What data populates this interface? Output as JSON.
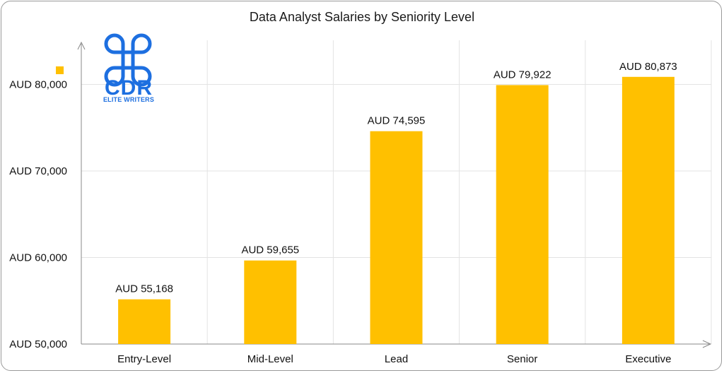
{
  "chart_data": {
    "type": "bar",
    "title": "Data Analyst Salaries by Seniority Level",
    "xlabel": "",
    "ylabel": "",
    "categories": [
      "Entry-Level",
      "Mid-Level",
      "Lead",
      "Senior",
      "Executive"
    ],
    "values": [
      55168,
      59655,
      74595,
      79922,
      80873
    ],
    "data_labels": [
      "AUD 55,168",
      "AUD 59,655",
      "AUD 74,595",
      "AUD 79,922",
      "AUD 80,873"
    ],
    "yticks": [
      50000,
      60000,
      70000,
      80000
    ],
    "ytick_labels": [
      "AUD 50,000",
      "AUD 60,000",
      "AUD 70,000",
      "AUD 80,000"
    ],
    "ylim": [
      50000,
      85000
    ],
    "grid": true,
    "bar_color": "#FFC000"
  },
  "logo": {
    "text": "CDR",
    "subtitle": "ELITE WRITERS",
    "color": "#1D6FE0"
  }
}
